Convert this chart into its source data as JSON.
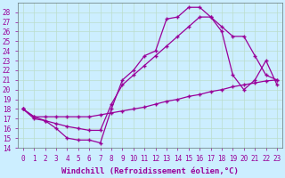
{
  "background_color": "#cceeff",
  "grid_color": "#aaddcc",
  "line_color": "#990099",
  "marker": "+",
  "xlabel": "Windchill (Refroidissement éolien,°C)",
  "xlim": [
    -0.5,
    23.5
  ],
  "ylim": [
    14,
    29
  ],
  "xticks": [
    0,
    1,
    2,
    3,
    4,
    5,
    6,
    7,
    8,
    9,
    10,
    11,
    12,
    13,
    14,
    15,
    16,
    17,
    18,
    19,
    20,
    21,
    22,
    23
  ],
  "yticks": [
    14,
    15,
    16,
    17,
    18,
    19,
    20,
    21,
    22,
    23,
    24,
    25,
    26,
    27,
    28
  ],
  "line1_x": [
    0,
    1,
    2,
    3,
    4,
    5,
    6,
    7,
    8,
    9,
    10,
    11,
    12,
    13,
    14,
    15,
    16,
    17,
    18,
    19,
    20,
    21,
    22,
    23
  ],
  "line1_y": [
    18.0,
    17.2,
    16.8,
    16.0,
    15.0,
    14.8,
    14.8,
    14.5,
    18.0,
    21.0,
    22.0,
    23.5,
    24.0,
    27.3,
    27.5,
    28.5,
    28.5,
    27.5,
    26.0,
    21.5,
    20.0,
    21.0,
    23.0,
    20.5
  ],
  "line2_x": [
    0,
    1,
    2,
    3,
    4,
    5,
    6,
    7,
    8,
    9,
    10,
    11,
    12,
    13,
    14,
    15,
    16,
    17,
    18,
    19,
    20,
    21,
    22,
    23
  ],
  "line2_y": [
    18.0,
    17.2,
    17.2,
    17.2,
    17.2,
    17.2,
    17.2,
    17.4,
    17.6,
    17.8,
    18.0,
    18.2,
    18.5,
    18.8,
    19.0,
    19.3,
    19.5,
    19.8,
    20.0,
    20.3,
    20.5,
    20.7,
    20.9,
    21.0
  ],
  "line3_x": [
    0,
    1,
    2,
    3,
    4,
    5,
    6,
    7,
    8,
    9,
    10,
    11,
    12,
    13,
    14,
    15,
    16,
    17,
    18,
    19,
    20,
    21,
    22,
    23
  ],
  "line3_y": [
    18.0,
    17.0,
    16.8,
    16.5,
    16.2,
    16.0,
    15.8,
    15.8,
    18.5,
    20.5,
    21.5,
    22.5,
    23.5,
    24.5,
    25.5,
    26.5,
    27.5,
    27.5,
    26.5,
    25.5,
    25.5,
    23.5,
    21.5,
    21.0
  ],
  "font_family": "monospace",
  "tick_fontsize": 5.5,
  "label_fontsize": 6.5
}
